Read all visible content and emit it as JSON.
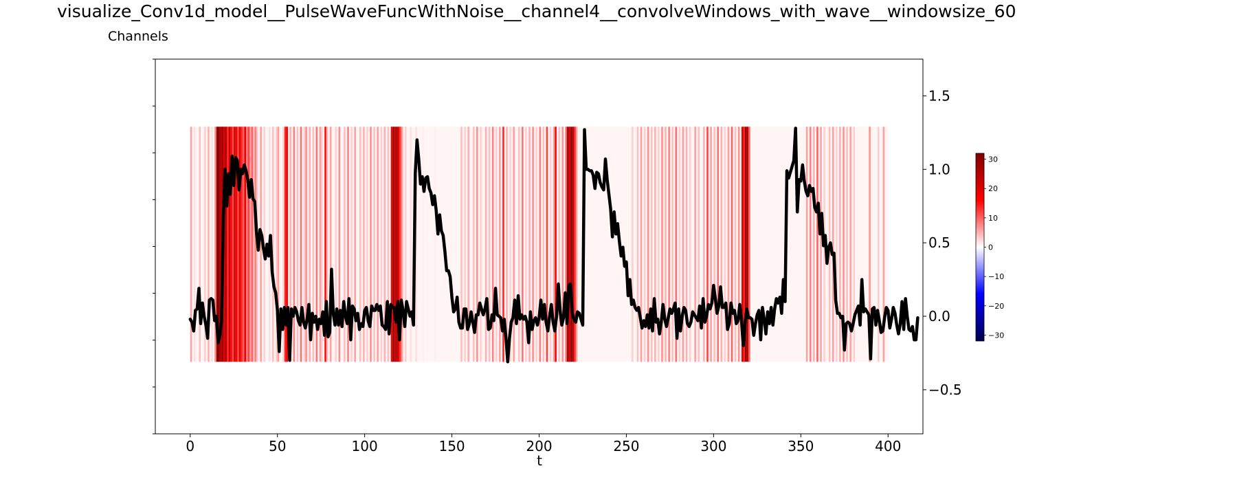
{
  "title": "visualize_Conv1d_model__PulseWaveFuncWithNoise__channel4__convolveWindows_with_wave__windowsize_60",
  "subtitle": "Channels",
  "chart_data": {
    "type": "line",
    "xlabel": "t",
    "ylabel": "",
    "xlim": [
      -20,
      420
    ],
    "ylim": [
      -0.8,
      1.75
    ],
    "xticks": [
      0,
      50,
      100,
      150,
      200,
      250,
      300,
      350,
      400
    ],
    "yticks_right": [
      -0.5,
      0.0,
      0.5,
      1.0,
      1.5
    ],
    "grid": false,
    "series": [
      {
        "x_start": 0,
        "x_step": 1,
        "y": [
          -0.02,
          -0.04,
          -0.1,
          0.04,
          0.05,
          0.19,
          -0.05,
          0.09,
          0.0,
          -0.06,
          -0.15,
          0.11,
          0.12,
          0.11,
          -0.03,
          0.0,
          -0.18,
          -0.13,
          -0.03,
          0.68,
          1.0,
          0.75,
          0.97,
          0.83,
          1.09,
          0.89,
          1.08,
          1.06,
          0.86,
          1.0,
          0.97,
          1.03,
          0.99,
          0.93,
          0.81,
          0.93,
          0.8,
          0.78,
          0.57,
          0.45,
          0.59,
          0.55,
          0.46,
          0.39,
          0.49,
          0.41,
          0.55,
          0.3,
          0.2,
          0.16,
          0.04,
          -0.24,
          0.05,
          -0.09,
          0.06,
          -0.06,
          0.06,
          -0.3,
          0.05,
          0.0,
          0.06,
          0.03,
          -0.03,
          -0.06,
          0.06,
          -0.04,
          -0.08,
          -0.02,
          0.08,
          -0.16,
          0.02,
          -0.04,
          0.0,
          -0.09,
          -0.02,
          -0.05,
          0.03,
          -0.13,
          0.1,
          -0.14,
          -0.11,
          0.32,
          0.02,
          -0.06,
          0.05,
          -0.06,
          0.04,
          -0.07,
          0.1,
          0.0,
          -0.05,
          0.12,
          -0.16,
          0.07,
          0.05,
          -0.03,
          0.02,
          -0.09,
          -0.05,
          -0.07,
          0.04,
          0.06,
          -0.03,
          -0.07,
          0.07,
          0.04,
          0.04,
          0.08,
          0.04,
          0.07,
          -0.06,
          -0.07,
          -0.09,
          0.1,
          -0.12,
          0.08,
          0.06,
          0.06,
          -0.04,
          0.1,
          -0.16,
          0.11,
          0.04,
          -0.07,
          0.1,
          0.05,
          0.0,
          0.03,
          -0.06,
          0.97,
          1.2,
          1.07,
          0.9,
          0.95,
          0.85,
          0.94,
          0.95,
          0.87,
          0.84,
          0.76,
          0.82,
          0.72,
          0.56,
          0.69,
          0.58,
          0.55,
          0.44,
          0.31,
          0.31,
          0.27,
          0.13,
          0.03,
          0.05,
          0.13,
          -0.04,
          -0.08,
          -0.08,
          0.05,
          0.05,
          -0.09,
          -0.05,
          0.03,
          -0.04,
          -0.11,
          0.01,
          0.01,
          0.09,
          0.05,
          0.01,
          0.05,
          0.12,
          -0.09,
          -0.08,
          0.01,
          -0.03,
          0.19,
          0.01,
          0.0,
          -0.01,
          -0.1,
          -0.02,
          -0.15,
          -0.31,
          -0.15,
          -0.04,
          -0.01,
          0.11,
          -0.05,
          0.14,
          -0.02,
          0.01,
          -0.02,
          0.0,
          -0.04,
          -0.18,
          0.03,
          -0.09,
          -0.03,
          -0.01,
          -0.06,
          -0.01,
          0.11,
          -0.02,
          0.08,
          -0.04,
          -0.1,
          0.0,
          0.08,
          -0.04,
          -0.1,
          0.0,
          0.22,
          0.04,
          -0.06,
          -0.01,
          0.16,
          -0.05,
          0.21,
          0.22,
          0.02,
          -0.02,
          -0.04,
          0.03,
          0.02,
          -0.02,
          -0.06,
          1.27,
          1.0,
          1.0,
          0.99,
          0.99,
          0.96,
          0.87,
          0.98,
          0.97,
          0.91,
          0.88,
          0.86,
          1.07,
          0.93,
          0.83,
          0.73,
          0.54,
          0.71,
          0.56,
          0.63,
          0.51,
          0.41,
          0.47,
          0.34,
          0.37,
          0.14,
          0.25,
          0.08,
          0.11,
          0.06,
          0.04,
          0.06,
          -0.01,
          -0.08,
          -0.03,
          -0.07,
          0.01,
          -0.08,
          0.05,
          -0.1,
          0.12,
          -0.04,
          -0.02,
          -0.12,
          -0.04,
          0.08,
          -0.02,
          -0.07,
          -0.01,
          0.05,
          0.02,
          0.05,
          0.09,
          -0.15,
          0.05,
          -0.1,
          0.0,
          0.06,
          0.04,
          -0.05,
          -0.07,
          -0.04,
          0.03,
          0.01,
          -0.01,
          -0.03,
          0.07,
          -0.08,
          0.12,
          -0.04,
          0.0,
          0.08,
          0.05,
          0.09,
          0.21,
          0.12,
          0.02,
          0.07,
          0.2,
          0.06,
          0.06,
          0.09,
          -0.09,
          -0.05,
          0.09,
          0.02,
          0.04,
          -0.05,
          -0.03,
          0.08,
          -0.03,
          -0.2,
          -0.05,
          0.05,
          -0.01,
          -0.01,
          -0.02,
          -0.13,
          -0.05,
          0.01,
          0.04,
          -0.16,
          0.06,
          -0.02,
          -0.12,
          0.03,
          -0.05,
          0.06,
          -0.06,
          0.05,
          0.12,
          0.09,
          0.13,
          0.02,
          0.25,
          0.1,
          0.99,
          0.94,
          0.98,
          1.02,
          1.06,
          1.28,
          0.71,
          0.93,
          0.92,
          1.03,
          0.92,
          0.85,
          0.82,
          0.89,
          0.85,
          0.87,
          0.74,
          0.71,
          0.77,
          0.56,
          0.7,
          0.48,
          0.55,
          0.36,
          0.47,
          0.5,
          0.42,
          0.43,
          0.11,
          0.02,
          0.02,
          -0.01,
          0.0,
          -0.23,
          -0.05,
          -0.04,
          -0.05,
          -0.1,
          -0.05,
          0.01,
          0.04,
          0.07,
          -0.06,
          0.25,
          0.03,
          0.05,
          0.03,
          0.01,
          -0.29,
          0.05,
          0.06,
          -0.06,
          0.04,
          -0.03,
          -0.11,
          -0.1,
          -0.01,
          0.06,
          0.04,
          -0.08,
          -0.02,
          0.06,
          0.02,
          -0.06,
          -0.12,
          -0.05,
          0.1,
          -0.09,
          0.12,
          0.0,
          -0.09,
          -0.1,
          -0.07,
          -0.16,
          -0.16,
          -0.01
        ]
      }
    ],
    "heatmap": {
      "x_start": 0,
      "x_end": 399,
      "y_range": [
        -0.31,
        1.29
      ],
      "colormap": "seismic",
      "clim": [
        -32,
        32
      ],
      "colorbar_ticks": [
        30,
        20,
        10,
        0,
        -10,
        -20,
        -30
      ],
      "bands": [
        [
          0,
          1,
          6
        ],
        [
          2,
          3,
          2
        ],
        [
          5,
          6,
          4
        ],
        [
          8,
          9,
          3
        ],
        [
          10,
          11,
          5
        ],
        [
          12,
          13,
          2
        ],
        [
          14,
          15,
          8
        ],
        [
          15,
          17,
          30
        ],
        [
          17,
          18,
          24
        ],
        [
          18,
          19,
          28
        ],
        [
          19,
          20,
          20
        ],
        [
          20,
          21,
          26
        ],
        [
          21,
          22,
          14
        ],
        [
          22,
          23,
          22
        ],
        [
          23,
          24,
          18
        ],
        [
          24,
          25,
          12
        ],
        [
          25,
          26,
          24
        ],
        [
          26,
          27,
          16
        ],
        [
          27,
          28,
          12
        ],
        [
          28,
          29,
          20
        ],
        [
          29,
          30,
          14
        ],
        [
          30,
          31,
          10
        ],
        [
          31,
          32,
          18
        ],
        [
          32,
          33,
          8
        ],
        [
          33,
          34,
          12
        ],
        [
          34,
          35,
          6
        ],
        [
          35,
          36,
          10
        ],
        [
          36,
          37,
          5
        ],
        [
          37,
          38,
          8
        ],
        [
          38,
          39,
          3
        ],
        [
          40,
          41,
          6
        ],
        [
          42,
          43,
          3
        ],
        [
          45,
          46,
          2
        ],
        [
          47,
          48,
          4
        ],
        [
          49,
          50,
          3
        ],
        [
          50,
          51,
          6
        ],
        [
          53,
          54,
          3
        ],
        [
          54,
          55,
          14
        ],
        [
          55,
          56,
          18
        ],
        [
          57,
          58,
          5
        ],
        [
          59,
          60,
          8
        ],
        [
          61,
          62,
          4
        ],
        [
          63,
          64,
          9
        ],
        [
          65,
          66,
          3
        ],
        [
          66,
          67,
          7
        ],
        [
          68,
          69,
          5
        ],
        [
          70,
          71,
          4
        ],
        [
          72,
          73,
          9
        ],
        [
          74,
          75,
          6
        ],
        [
          75,
          76,
          3
        ],
        [
          77,
          78,
          16
        ],
        [
          78,
          79,
          4
        ],
        [
          80,
          81,
          6
        ],
        [
          83,
          84,
          3
        ],
        [
          85,
          86,
          7
        ],
        [
          88,
          89,
          4
        ],
        [
          90,
          91,
          8
        ],
        [
          92,
          93,
          3
        ],
        [
          94,
          95,
          6
        ],
        [
          97,
          98,
          4
        ],
        [
          99,
          100,
          5
        ],
        [
          101,
          102,
          3
        ],
        [
          103,
          104,
          7
        ],
        [
          105,
          106,
          4
        ],
        [
          107,
          108,
          6
        ],
        [
          109,
          110,
          3
        ],
        [
          111,
          112,
          5
        ],
        [
          113,
          114,
          4
        ],
        [
          115,
          116,
          16
        ],
        [
          116,
          117,
          30
        ],
        [
          117,
          118,
          22
        ],
        [
          118,
          119,
          28
        ],
        [
          119,
          120,
          18
        ],
        [
          120,
          121,
          12
        ],
        [
          121,
          122,
          6
        ],
        [
          123,
          124,
          3
        ],
        [
          126,
          127,
          2
        ],
        [
          129,
          130,
          2
        ],
        [
          133,
          134,
          1
        ],
        [
          140,
          141,
          1
        ],
        [
          155,
          156,
          4
        ],
        [
          157,
          158,
          3
        ],
        [
          159,
          160,
          5
        ],
        [
          162,
          163,
          4
        ],
        [
          164,
          165,
          7
        ],
        [
          166,
          167,
          3
        ],
        [
          169,
          170,
          5
        ],
        [
          171,
          172,
          4
        ],
        [
          173,
          174,
          8
        ],
        [
          175,
          176,
          3
        ],
        [
          177,
          178,
          6
        ],
        [
          179,
          180,
          14
        ],
        [
          181,
          182,
          5
        ],
        [
          183,
          184,
          3
        ],
        [
          185,
          186,
          6
        ],
        [
          188,
          189,
          4
        ],
        [
          190,
          191,
          9
        ],
        [
          192,
          193,
          3
        ],
        [
          194,
          195,
          5
        ],
        [
          196,
          197,
          7
        ],
        [
          198,
          199,
          3
        ],
        [
          200,
          201,
          8
        ],
        [
          202,
          203,
          4
        ],
        [
          204,
          205,
          12
        ],
        [
          206,
          207,
          3
        ],
        [
          208,
          209,
          6
        ],
        [
          209,
          210,
          16
        ],
        [
          211,
          212,
          4
        ],
        [
          213,
          214,
          7
        ],
        [
          215,
          216,
          10
        ],
        [
          216,
          217,
          30
        ],
        [
          217,
          218,
          20
        ],
        [
          218,
          219,
          32
        ],
        [
          219,
          220,
          24
        ],
        [
          220,
          221,
          14
        ],
        [
          221,
          222,
          6
        ],
        [
          253,
          254,
          3
        ],
        [
          256,
          257,
          4
        ],
        [
          258,
          259,
          6
        ],
        [
          260,
          261,
          3
        ],
        [
          262,
          263,
          7
        ],
        [
          264,
          265,
          4
        ],
        [
          266,
          267,
          5
        ],
        [
          268,
          269,
          3
        ],
        [
          270,
          271,
          7
        ],
        [
          272,
          273,
          5
        ],
        [
          274,
          275,
          8
        ],
        [
          276,
          277,
          4
        ],
        [
          278,
          279,
          9
        ],
        [
          280,
          281,
          3
        ],
        [
          282,
          283,
          6
        ],
        [
          284,
          285,
          5
        ],
        [
          286,
          287,
          3
        ],
        [
          289,
          290,
          6
        ],
        [
          291,
          292,
          4
        ],
        [
          294,
          295,
          5
        ],
        [
          296,
          297,
          12
        ],
        [
          298,
          299,
          6
        ],
        [
          300,
          301,
          4
        ],
        [
          302,
          303,
          9
        ],
        [
          304,
          305,
          5
        ],
        [
          306,
          307,
          3
        ],
        [
          308,
          309,
          6
        ],
        [
          310,
          311,
          10
        ],
        [
          312,
          313,
          4
        ],
        [
          314,
          315,
          7
        ],
        [
          316,
          317,
          20
        ],
        [
          317,
          318,
          14
        ],
        [
          318,
          319,
          30
        ],
        [
          319,
          320,
          24
        ],
        [
          320,
          321,
          10
        ],
        [
          353,
          354,
          6
        ],
        [
          355,
          356,
          8
        ],
        [
          357,
          358,
          5
        ],
        [
          359,
          360,
          10
        ],
        [
          361,
          362,
          6
        ],
        [
          363,
          364,
          3
        ],
        [
          366,
          367,
          4
        ],
        [
          368,
          369,
          6
        ],
        [
          370,
          371,
          3
        ],
        [
          372,
          373,
          5
        ],
        [
          374,
          375,
          7
        ],
        [
          376,
          377,
          4
        ],
        [
          378,
          379,
          6
        ],
        [
          380,
          381,
          3
        ],
        [
          389,
          390,
          7
        ],
        [
          394,
          395,
          3
        ],
        [
          397,
          398,
          6
        ]
      ]
    }
  }
}
